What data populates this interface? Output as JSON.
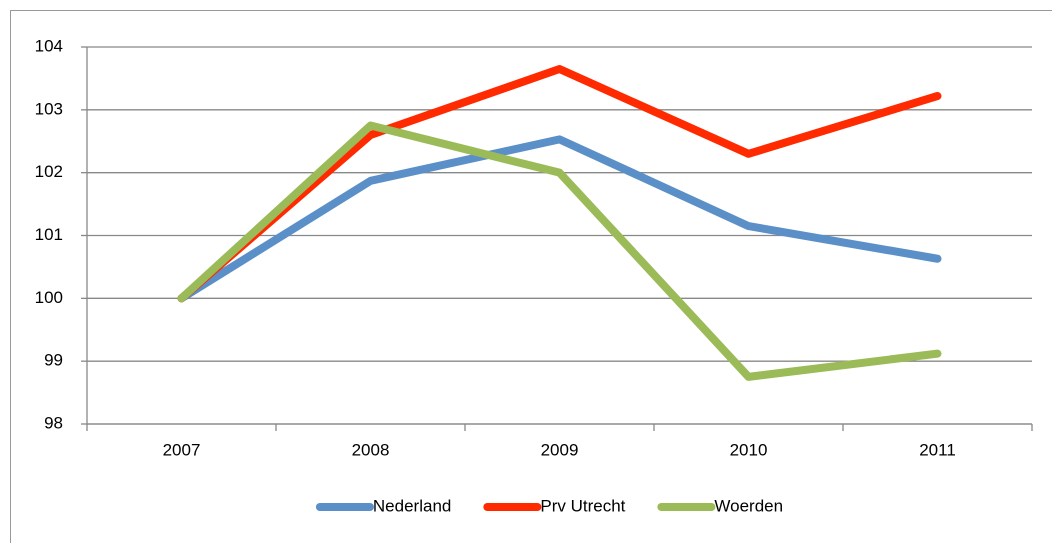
{
  "chart_data": {
    "type": "line",
    "categories": [
      "2007",
      "2008",
      "2009",
      "2010",
      "2011"
    ],
    "series": [
      {
        "name": "Nederland",
        "color": "#5b8fc7",
        "values": [
          100,
          101.87,
          102.53,
          101.15,
          100.63
        ]
      },
      {
        "name": "Prv Utrecht",
        "color": "#ff2a00",
        "values": [
          100,
          102.6,
          103.65,
          102.3,
          103.22
        ]
      },
      {
        "name": "Woerden",
        "color": "#9bbb59",
        "values": [
          100,
          102.75,
          102.0,
          98.75,
          99.12
        ]
      }
    ],
    "ylim": [
      98,
      104
    ],
    "yticks": [
      98,
      99,
      100,
      101,
      102,
      103,
      104
    ],
    "grid": true,
    "legend": "bottom"
  }
}
